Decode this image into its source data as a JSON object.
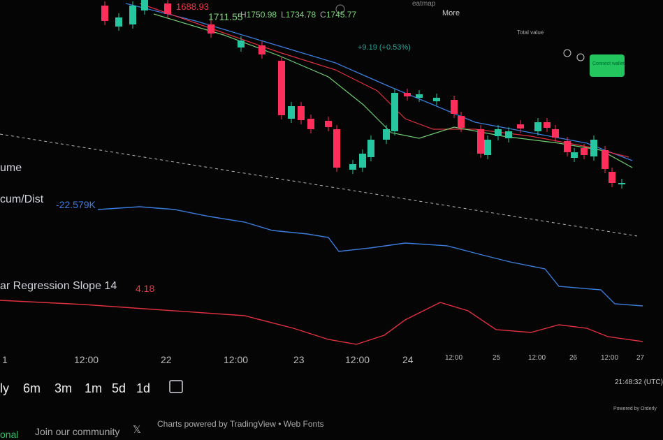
{
  "header": {
    "open_partial": "1688.93",
    "prev_close": "1711.55",
    "ohlc": [
      {
        "letter": "H",
        "value": "1750.98"
      },
      {
        "letter": "L",
        "value": "1734.78"
      },
      {
        "letter": "C",
        "value": "1745.77"
      }
    ],
    "change": "+9.19 (+0.53%)"
  },
  "nav": {
    "heatmap": "eatmap",
    "more": "More",
    "total_value": "Total value",
    "connect_wallet": "Connect wallet"
  },
  "indicators": {
    "volume": "ume",
    "accum": "cum/Dist",
    "accum_value": "-22.579K",
    "regression": "ar Regression Slope 14",
    "regression_value": "4.18"
  },
  "time_axis": [
    "1",
    "12:00",
    "22",
    "12:00",
    "23",
    "12:00",
    "24",
    "12:00",
    "25",
    "12:00",
    "26",
    "12:00",
    "27"
  ],
  "clock": "21:48:32 (UTC)",
  "ranges": [
    "ly",
    "6m",
    "3m",
    "1m",
    "5d",
    "1d"
  ],
  "footer": {
    "tab": "onal",
    "community": "Join our community",
    "powered_tv": "Charts powered by TradingView • Web Fonts",
    "powered_orderly": "Powered by Orderly"
  }
}
